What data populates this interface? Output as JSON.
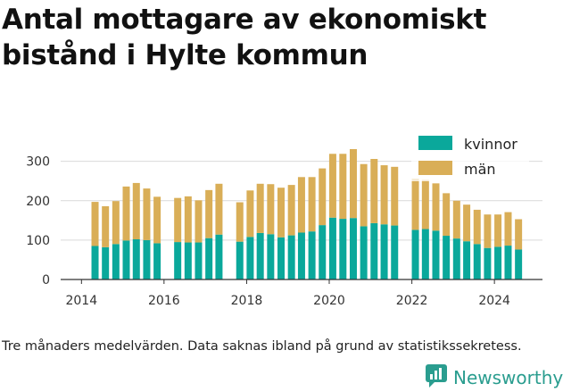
{
  "title": "Antal mottagare av ekonomiskt bistånd i Hylte kommun",
  "footnote": "Tre månaders medelvärden. Data saknas ibland på grund av statistikssekretess.",
  "brand": {
    "name": "Newsworthy",
    "icon": "newsworthy-logo-icon"
  },
  "colors": {
    "kvinnor": "#0aa89b",
    "man": "#d9ae57",
    "grid": "#d9d9d9",
    "axis": "#333333"
  },
  "chart_data": {
    "type": "bar",
    "stacked": true,
    "xlabel": "",
    "ylabel": "",
    "ylim": [
      0,
      340
    ],
    "yticks": [
      0,
      100,
      200,
      300
    ],
    "xlim": [
      "2013-07-01",
      "2025-03-01"
    ],
    "xticks": [
      {
        "date": "2014-01-01",
        "label": "2014"
      },
      {
        "date": "2016-01-01",
        "label": "2016"
      },
      {
        "date": "2018-01-01",
        "label": "2018"
      },
      {
        "date": "2020-01-01",
        "label": "2020"
      },
      {
        "date": "2022-01-01",
        "label": "2022"
      },
      {
        "date": "2024-01-01",
        "label": "2024"
      }
    ],
    "grid": true,
    "legend_position": "top-right",
    "dates": [
      "2014-05",
      "2014-08",
      "2014-11",
      "2015-02",
      "2015-05",
      "2015-08",
      "2015-11",
      "2016-05",
      "2016-08",
      "2016-11",
      "2017-02",
      "2017-05",
      "2017-11",
      "2018-02",
      "2018-05",
      "2018-08",
      "2018-11",
      "2019-02",
      "2019-05",
      "2019-08",
      "2019-11",
      "2020-02",
      "2020-05",
      "2020-08",
      "2020-11",
      "2021-02",
      "2021-05",
      "2021-08",
      "2022-02",
      "2022-05",
      "2022-08",
      "2022-11",
      "2023-02",
      "2023-05",
      "2023-08",
      "2023-11",
      "2024-02",
      "2024-05",
      "2024-08"
    ],
    "series": [
      {
        "name": "kvinnor",
        "values": [
          85,
          82,
          90,
          99,
          102,
          100,
          92,
          95,
          94,
          94,
          105,
          114,
          96,
          108,
          118,
          115,
          107,
          112,
          119,
          122,
          138,
          157,
          154,
          156,
          135,
          143,
          140,
          137,
          126,
          128,
          124,
          111,
          104,
          97,
          90,
          80,
          83,
          86,
          76
        ]
      },
      {
        "name": "män",
        "values": [
          112,
          104,
          109,
          137,
          143,
          131,
          118,
          112,
          117,
          107,
          122,
          129,
          100,
          118,
          125,
          127,
          126,
          128,
          141,
          138,
          144,
          162,
          165,
          175,
          158,
          163,
          150,
          149,
          130,
          125,
          120,
          108,
          96,
          93,
          87,
          85,
          82,
          85,
          77
        ]
      }
    ]
  }
}
